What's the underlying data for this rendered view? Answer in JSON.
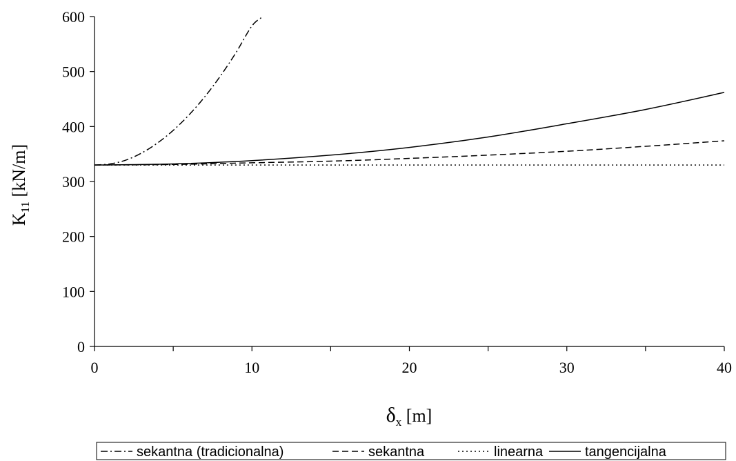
{
  "chart_data": {
    "type": "line",
    "xlabel": {
      "main": "δ",
      "sub": "x",
      "rest": " [m]"
    },
    "ylabel": {
      "main": "K",
      "sub": "11",
      "rest": " [kN/m]"
    },
    "xlim": [
      0,
      40
    ],
    "ylim": [
      0,
      600
    ],
    "xticks": [
      0,
      10,
      20,
      30,
      40
    ],
    "yticks": [
      0,
      100,
      200,
      300,
      400,
      500,
      600
    ],
    "grid": false,
    "legend_position": "bottom",
    "series": [
      {
        "name": "sekantna (tradicionalna)",
        "style": "dashdot",
        "x": [
          0,
          1,
          2,
          3,
          4,
          5,
          6,
          7,
          8,
          9,
          10,
          10.7
        ],
        "y": [
          330,
          332,
          339,
          352,
          370,
          393,
          421,
          454,
          492,
          535,
          583,
          600
        ]
      },
      {
        "name": "sekantna",
        "style": "dashed",
        "x": [
          0,
          5,
          10,
          15,
          20,
          25,
          30,
          35,
          40
        ],
        "y": [
          330,
          331,
          334,
          337,
          342,
          348,
          355,
          364,
          374
        ]
      },
      {
        "name": "linearna",
        "style": "dotted",
        "x": [
          0,
          40
        ],
        "y": [
          330,
          330
        ]
      },
      {
        "name": "tangencijalna",
        "style": "solid",
        "x": [
          0,
          5,
          10,
          15,
          20,
          25,
          30,
          35,
          40
        ],
        "y": [
          330,
          332,
          338,
          348,
          362,
          381,
          405,
          431,
          462
        ]
      }
    ]
  }
}
